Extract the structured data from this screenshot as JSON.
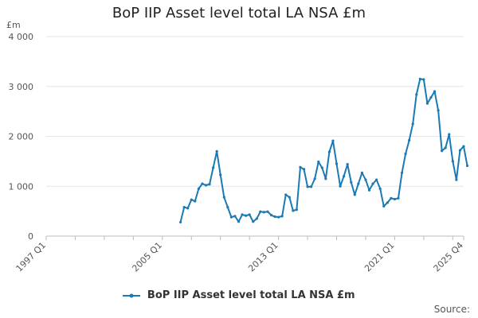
{
  "chart_data": {
    "type": "line",
    "title": "BoP IIP Asset level total LA NSA £m",
    "ylabel": "£m",
    "xlabel": "",
    "ylim": [
      0,
      4000
    ],
    "yticks": [
      0,
      1000,
      2000,
      3000,
      4000
    ],
    "ytick_labels": [
      "0",
      "1 000",
      "2 000",
      "3 000",
      "4 000"
    ],
    "xtick_labels": [
      "1997 Q1",
      "2005 Q1",
      "2013 Q1",
      "2021 Q1",
      "2025 Q4"
    ],
    "grid": true,
    "legend_position": "bottom",
    "source_label": "Source:",
    "color": "#1a7ab3",
    "series": [
      {
        "name": "BoP IIP Asset level total LA NSA £m",
        "x_start": "2006 Q2",
        "values": [
          280,
          580,
          560,
          730,
          700,
          950,
          1050,
          1020,
          1040,
          1370,
          1700,
          1230,
          780,
          580,
          380,
          400,
          290,
          430,
          410,
          430,
          290,
          350,
          490,
          480,
          490,
          420,
          390,
          380,
          400,
          830,
          780,
          510,
          530,
          1380,
          1340,
          990,
          990,
          1150,
          1490,
          1370,
          1150,
          1690,
          1910,
          1450,
          1000,
          1200,
          1440,
          1080,
          830,
          1050,
          1270,
          1130,
          920,
          1050,
          1130,
          950,
          600,
          670,
          760,
          740,
          760,
          1270,
          1650,
          1920,
          2250,
          2840,
          3150,
          3140,
          2660,
          2780,
          2900,
          2520,
          1710,
          1770,
          2040,
          1500,
          1130,
          1720,
          1800,
          1410
        ]
      }
    ]
  }
}
